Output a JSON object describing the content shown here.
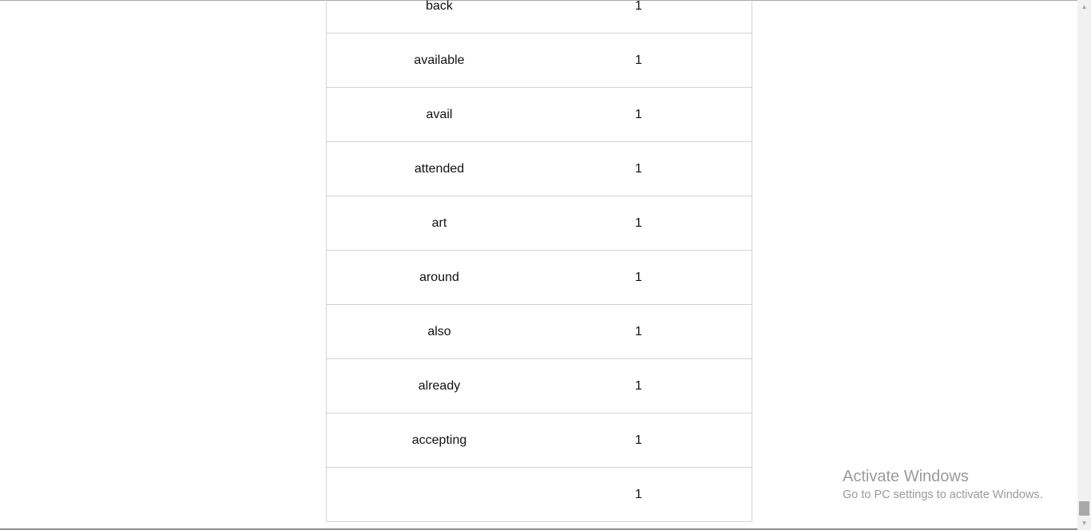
{
  "word_table": {
    "rows": [
      {
        "word": "back",
        "count": "1"
      },
      {
        "word": "available",
        "count": "1"
      },
      {
        "word": "avail",
        "count": "1"
      },
      {
        "word": "attended",
        "count": "1"
      },
      {
        "word": "art",
        "count": "1"
      },
      {
        "word": "around",
        "count": "1"
      },
      {
        "word": "also",
        "count": "1"
      },
      {
        "word": "already",
        "count": "1"
      },
      {
        "word": "accepting",
        "count": "1"
      },
      {
        "word": "",
        "count": "1"
      }
    ]
  },
  "scrollbar": {
    "up_icon": "scroll-up-arrow-icon",
    "down_icon": "scroll-down-arrow-icon"
  },
  "watermark": {
    "title": "Activate Windows",
    "subtitle": "Go to PC settings to activate Windows."
  }
}
